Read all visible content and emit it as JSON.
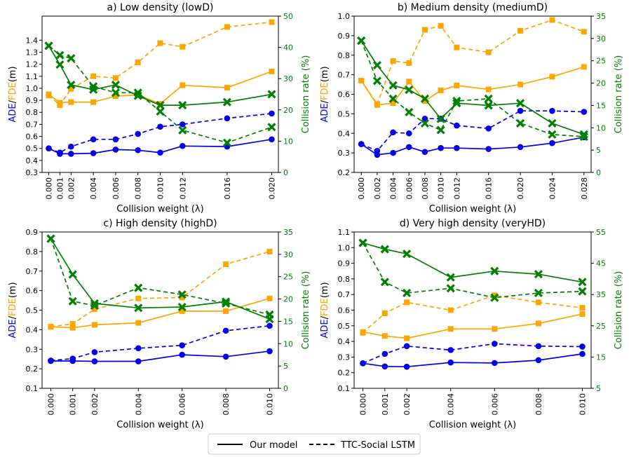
{
  "legend": {
    "solid_label": "Our model",
    "dashed_label": "TTC-Social LSTM"
  },
  "colors": {
    "ade": "#0000ee",
    "fde": "#ffa500",
    "collision": "#008000"
  },
  "chart_data": [
    {
      "type": "line",
      "title": "a) Low density (lowD)",
      "xlabel": "Collision weight (λ)",
      "ylabel_parts": [
        "ADE",
        "/",
        "FDE",
        "(m)"
      ],
      "y2label": "Collision rate (%)",
      "x": [
        0.0,
        0.001,
        0.002,
        0.004,
        0.006,
        0.008,
        0.01,
        0.012,
        0.016,
        0.02
      ],
      "x_tick_labels": [
        "0.000",
        "0.001",
        "0.002",
        "0.004",
        "0.006",
        "0.008",
        "0.010",
        "0.012",
        "0.016",
        "0.020"
      ],
      "xlim": [
        -0.0006,
        0.0206
      ],
      "ylim": [
        0.3,
        1.6
      ],
      "y_ticks": [
        "0.3",
        "0.4",
        "0.5",
        "0.6",
        "0.7",
        "0.8",
        "0.9",
        "1.0",
        "1.1",
        "1.2",
        "1.3",
        "1.4"
      ],
      "y2lim": [
        0,
        50
      ],
      "y2_ticks": [
        "0",
        "10",
        "20",
        "30",
        "40",
        "50"
      ],
      "series": [
        {
          "name": "ADE Our model",
          "metric": "ade",
          "model": "ours",
          "axis": "left",
          "values": [
            0.5,
            0.455,
            0.455,
            0.46,
            0.49,
            0.485,
            0.465,
            0.52,
            0.515,
            0.575
          ]
        },
        {
          "name": "ADE TTC-Social LSTM",
          "metric": "ade",
          "model": "ttc",
          "axis": "left",
          "values": [
            0.5,
            0.465,
            0.515,
            0.575,
            0.575,
            0.62,
            0.68,
            0.7,
            0.75,
            0.79
          ]
        },
        {
          "name": "FDE Our model",
          "metric": "fde",
          "model": "ours",
          "axis": "left",
          "values": [
            0.95,
            0.88,
            0.885,
            0.885,
            0.935,
            0.945,
            0.87,
            1.025,
            1.005,
            1.14
          ]
        },
        {
          "name": "FDE TTC-Social LSTM",
          "metric": "fde",
          "model": "ttc",
          "axis": "left",
          "values": [
            0.94,
            0.86,
            0.995,
            1.1,
            1.085,
            1.215,
            1.375,
            1.345,
            1.51,
            1.55
          ]
        },
        {
          "name": "Collision Our model",
          "metric": "collision",
          "model": "ours",
          "axis": "right",
          "values": [
            40.5,
            34.5,
            28,
            26.5,
            28,
            24.5,
            21.5,
            21.5,
            22.5,
            25
          ]
        },
        {
          "name": "Collision TTC-Social LSTM",
          "metric": "collision",
          "model": "ttc",
          "axis": "right",
          "values": [
            40.5,
            37.5,
            36.5,
            27.5,
            25.5,
            25.5,
            19.5,
            13.5,
            9.5,
            14.5
          ]
        }
      ]
    },
    {
      "type": "line",
      "title": "b) Medium density (mediumD)",
      "xlabel": "Collision weight (λ)",
      "ylabel_parts": [
        "ADE",
        "/",
        "FDE",
        "(m)"
      ],
      "y2label": "Collision rate (%)",
      "x": [
        0.0,
        0.002,
        0.004,
        0.006,
        0.008,
        0.01,
        0.012,
        0.016,
        0.02,
        0.024,
        0.028
      ],
      "x_tick_labels": [
        "0.000",
        "0.002",
        "0.004",
        "0.006",
        "0.008",
        "0.010",
        "0.012",
        "0.016",
        "0.020",
        "0.024",
        "0.028"
      ],
      "xlim": [
        -0.0009,
        0.0289
      ],
      "ylim": [
        0.2,
        1.0
      ],
      "y_ticks": [
        "0.2",
        "0.3",
        "0.4",
        "0.5",
        "0.6",
        "0.7",
        "0.8",
        "0.9",
        "1.0"
      ],
      "y2lim": [
        0,
        35
      ],
      "y2_ticks": [
        "0",
        "5",
        "10",
        "15",
        "20",
        "25",
        "30",
        "35"
      ],
      "series": [
        {
          "name": "ADE Our model",
          "metric": "ade",
          "model": "ours",
          "axis": "left",
          "values": [
            0.345,
            0.29,
            0.3,
            0.33,
            0.305,
            0.325,
            0.325,
            0.32,
            0.33,
            0.35,
            0.38
          ]
        },
        {
          "name": "ADE TTC-Social LSTM",
          "metric": "ade",
          "model": "ttc",
          "axis": "left",
          "values": [
            0.345,
            0.31,
            0.405,
            0.4,
            0.475,
            0.475,
            0.44,
            0.425,
            0.515,
            0.515,
            0.51
          ]
        },
        {
          "name": "FDE Our model",
          "metric": "fde",
          "model": "ours",
          "axis": "left",
          "values": [
            0.67,
            0.545,
            0.555,
            0.665,
            0.565,
            0.62,
            0.645,
            0.625,
            0.65,
            0.69,
            0.74
          ]
        },
        {
          "name": "FDE TTC-Social LSTM",
          "metric": "fde",
          "model": "ttc",
          "axis": "left",
          "values": [
            0.67,
            0.55,
            0.77,
            0.76,
            0.93,
            0.95,
            0.84,
            0.815,
            0.925,
            0.98,
            0.92
          ]
        },
        {
          "name": "Collision Our model",
          "metric": "collision",
          "model": "ours",
          "axis": "right",
          "values": [
            29.5,
            24,
            19.5,
            18.5,
            16.5,
            12,
            15.5,
            15,
            15.5,
            11,
            8.5
          ]
        },
        {
          "name": "Collision TTC-Social LSTM",
          "metric": "collision",
          "model": "ttc",
          "axis": "right",
          "values": [
            29.5,
            20.5,
            16.5,
            13.5,
            11,
            9.5,
            16,
            16.5,
            11,
            8.5,
            8
          ]
        }
      ]
    },
    {
      "type": "line",
      "title": "c) High density (highD)",
      "xlabel": "Collision weight (λ)",
      "ylabel_parts": [
        "ADE",
        "/",
        "FDE",
        "(m)"
      ],
      "y2label": "Collision rate (%)",
      "x": [
        0.0,
        0.001,
        0.002,
        0.004,
        0.006,
        0.008,
        0.01
      ],
      "x_tick_labels": [
        "0.000",
        "0.001",
        "0.002",
        "0.004",
        "0.006",
        "0.008",
        "0.010"
      ],
      "xlim": [
        -0.0004,
        0.0104
      ],
      "ylim": [
        0.1,
        0.9
      ],
      "y_ticks": [
        "0.1",
        "0.2",
        "0.3",
        "0.4",
        "0.5",
        "0.6",
        "0.7",
        "0.8",
        "0.9"
      ],
      "y2lim": [
        0,
        35
      ],
      "y2_ticks": [
        "0",
        "5",
        "10",
        "15",
        "20",
        "25",
        "30",
        "35"
      ],
      "series": [
        {
          "name": "ADE Our model",
          "metric": "ade",
          "model": "ours",
          "axis": "left",
          "values": [
            0.24,
            0.24,
            0.238,
            0.238,
            0.272,
            0.262,
            0.29
          ]
        },
        {
          "name": "ADE TTC-Social LSTM",
          "metric": "ade",
          "model": "ttc",
          "axis": "left",
          "values": [
            0.242,
            0.252,
            0.285,
            0.305,
            0.32,
            0.395,
            0.42
          ]
        },
        {
          "name": "FDE Our model",
          "metric": "fde",
          "model": "ours",
          "axis": "left",
          "values": [
            0.415,
            0.41,
            0.425,
            0.435,
            0.495,
            0.495,
            0.56
          ]
        },
        {
          "name": "FDE TTC-Social LSTM",
          "metric": "fde",
          "model": "ttc",
          "axis": "left",
          "values": [
            0.415,
            0.43,
            0.505,
            0.56,
            0.565,
            0.735,
            0.8
          ]
        },
        {
          "name": "Collision Our model",
          "metric": "collision",
          "model": "ours",
          "axis": "right",
          "values": [
            33.5,
            25.5,
            19,
            18,
            18.2,
            19.4,
            15.5
          ]
        },
        {
          "name": "Collision TTC-Social LSTM",
          "metric": "collision",
          "model": "ttc",
          "axis": "right",
          "values": [
            33.5,
            19.5,
            18.5,
            22.5,
            21,
            19,
            16.5
          ]
        }
      ]
    },
    {
      "type": "line",
      "title": "d) Very high density (veryHD)",
      "xlabel": "Collision weight (λ)",
      "ylabel_parts": [
        "ADE",
        "/",
        "FDE",
        "(m)"
      ],
      "y2label": "Collision rate (%)",
      "x": [
        0.0,
        0.001,
        0.002,
        0.004,
        0.006,
        0.008,
        0.01
      ],
      "x_tick_labels": [
        "0.000",
        "0.001",
        "0.002",
        "0.004",
        "0.006",
        "0.008",
        "0.010"
      ],
      "xlim": [
        -0.0004,
        0.0104
      ],
      "ylim": [
        0.1,
        1.1
      ],
      "y_ticks": [
        "0.1",
        "0.2",
        "0.3",
        "0.4",
        "0.5",
        "0.6",
        "0.7",
        "0.8",
        "0.9",
        "1.0",
        "1.1"
      ],
      "y2lim": [
        5,
        55
      ],
      "y2_ticks": [
        "5",
        "15",
        "25",
        "35",
        "45",
        "55"
      ],
      "series": [
        {
          "name": "ADE Our model",
          "metric": "ade",
          "model": "ours",
          "axis": "left",
          "values": [
            0.26,
            0.24,
            0.238,
            0.265,
            0.262,
            0.28,
            0.32
          ]
        },
        {
          "name": "ADE TTC-Social LSTM",
          "metric": "ade",
          "model": "ttc",
          "axis": "left",
          "values": [
            0.26,
            0.32,
            0.37,
            0.345,
            0.385,
            0.37,
            0.367
          ]
        },
        {
          "name": "FDE Our model",
          "metric": "fde",
          "model": "ours",
          "axis": "left",
          "values": [
            0.46,
            0.435,
            0.42,
            0.48,
            0.48,
            0.515,
            0.575
          ]
        },
        {
          "name": "FDE TTC-Social LSTM",
          "metric": "fde",
          "model": "ttc",
          "axis": "left",
          "values": [
            0.455,
            0.58,
            0.65,
            0.6,
            0.695,
            0.65,
            0.615
          ]
        },
        {
          "name": "Collision Our model",
          "metric": "collision",
          "model": "ours",
          "axis": "right",
          "values": [
            51.5,
            49.5,
            48,
            40.5,
            42.5,
            41.5,
            39
          ]
        },
        {
          "name": "Collision TTC-Social LSTM",
          "metric": "collision",
          "model": "ttc",
          "axis": "right",
          "values": [
            51.5,
            39,
            35.5,
            37,
            34,
            35.5,
            36
          ]
        }
      ]
    }
  ]
}
